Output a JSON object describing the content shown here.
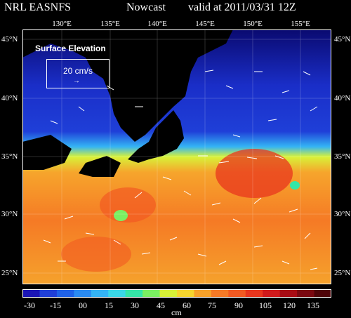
{
  "header": {
    "source": "NRL EASNFS",
    "product": "Nowcast",
    "valid": "valid at 2011/03/31 12Z"
  },
  "axes": {
    "lon_labels": [
      "130°E",
      "135°E",
      "140°E",
      "145°E",
      "150°E",
      "155°E"
    ],
    "lat_labels": [
      "45°N",
      "40°N",
      "35°N",
      "30°N",
      "25°N"
    ]
  },
  "legend": {
    "title": "Surface Elevation",
    "speed": "20 cm/s",
    "arrow": "→"
  },
  "colorbar": {
    "ticks": [
      "-30",
      "-15",
      "00",
      "15",
      "30",
      "45",
      "60",
      "75",
      "90",
      "105",
      "120",
      "135"
    ],
    "unit": "cm",
    "colors": [
      "#1b15b5",
      "#1f3fd8",
      "#1f62e8",
      "#2a8bf2",
      "#34b4f5",
      "#3ad8e8",
      "#35e6a8",
      "#7af062",
      "#d8f238",
      "#f6d52f",
      "#f8a22a",
      "#f67a26",
      "#f25a22",
      "#e8361e",
      "#d01a1c",
      "#a80c14",
      "#7a0810",
      "#4e0408"
    ]
  },
  "colors": {
    "land": "#000000",
    "ocean_south": "#f57a25",
    "ocean_north": "#1f3fd8",
    "front": "#3ad8e8"
  }
}
